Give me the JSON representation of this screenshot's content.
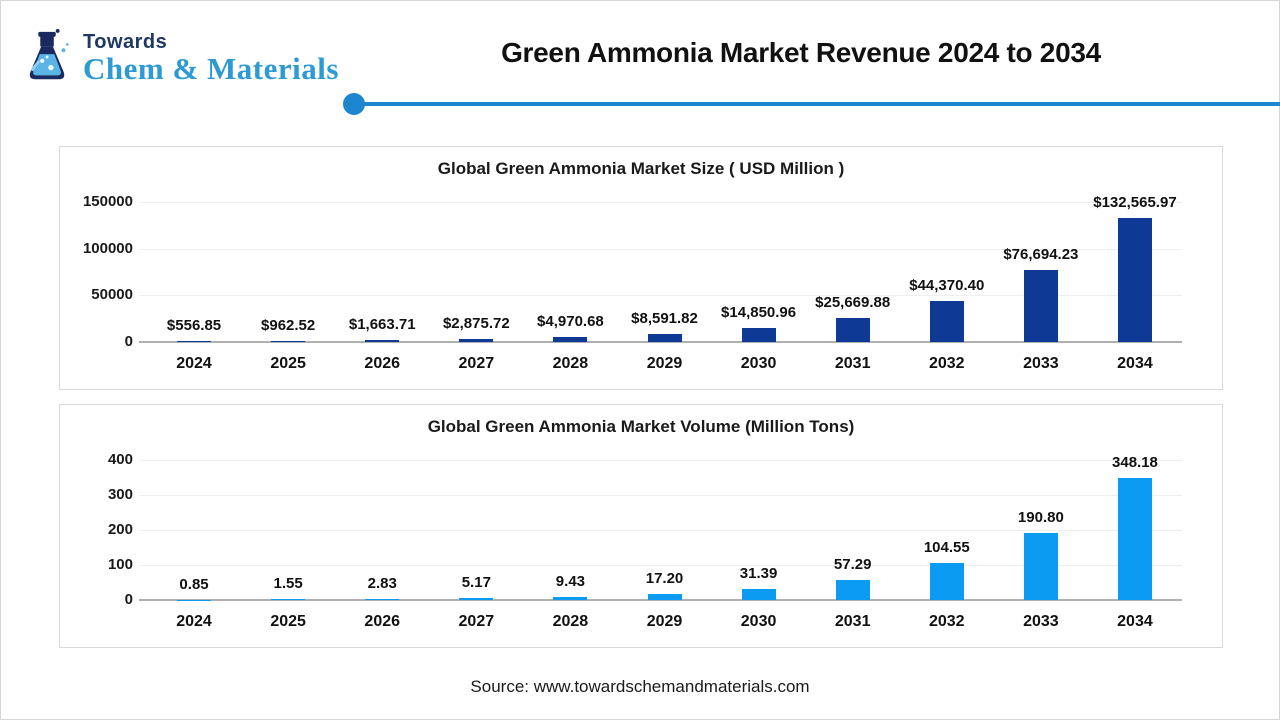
{
  "header": {
    "brand_top": "Towards",
    "brand_bottom": "Chem & Materials",
    "title": "Green Ammonia Market Revenue 2024 to 2034",
    "accent_color": "#1c86d1"
  },
  "chart_data": [
    {
      "type": "bar",
      "title": "Global Green Ammonia Market Size ( USD Million )",
      "categories": [
        "2024",
        "2025",
        "2026",
        "2027",
        "2028",
        "2029",
        "2030",
        "2031",
        "2032",
        "2033",
        "2034"
      ],
      "values": [
        556.85,
        962.52,
        1663.71,
        2875.72,
        4970.68,
        8591.82,
        14850.96,
        25669.88,
        44370.4,
        76694.23,
        132565.97
      ],
      "value_labels": [
        "$556.85",
        "$962.52",
        "$1,663.71",
        "$2,875.72",
        "$4,970.68",
        "$8,591.82",
        "$14,850.96",
        "$25,669.88",
        "$44,370.40",
        "$76,694.23",
        "$132,565.97"
      ],
      "yticks": [
        150000,
        100000,
        50000,
        0
      ],
      "ytick_labels": [
        "150000",
        "100000",
        "50000",
        "0"
      ],
      "ymax": 150000,
      "ylim": [
        0,
        150000
      ],
      "bar_color": "#0e3a96",
      "grid": true,
      "legend": "none",
      "xlabel": "",
      "ylabel": ""
    },
    {
      "type": "bar",
      "title": "Global Green Ammonia Market Volume (Million Tons)",
      "categories": [
        "2024",
        "2025",
        "2026",
        "2027",
        "2028",
        "2029",
        "2030",
        "2031",
        "2032",
        "2033",
        "2034"
      ],
      "values": [
        0.85,
        1.55,
        2.83,
        5.17,
        9.43,
        17.2,
        31.39,
        57.29,
        104.55,
        190.8,
        348.18
      ],
      "value_labels": [
        "0.85",
        "1.55",
        "2.83",
        "5.17",
        "9.43",
        "17.20",
        "31.39",
        "57.29",
        "104.55",
        "190.80",
        "348.18"
      ],
      "yticks": [
        400,
        300,
        200,
        100,
        0
      ],
      "ytick_labels": [
        "400",
        "300",
        "200",
        "100",
        "0"
      ],
      "ymax": 400,
      "ylim": [
        0,
        400
      ],
      "bar_color": "#0c9bf2",
      "grid": true,
      "legend": "none",
      "xlabel": "",
      "ylabel": ""
    }
  ],
  "footer": {
    "source": "Source: www.towardschemandmaterials.com"
  }
}
